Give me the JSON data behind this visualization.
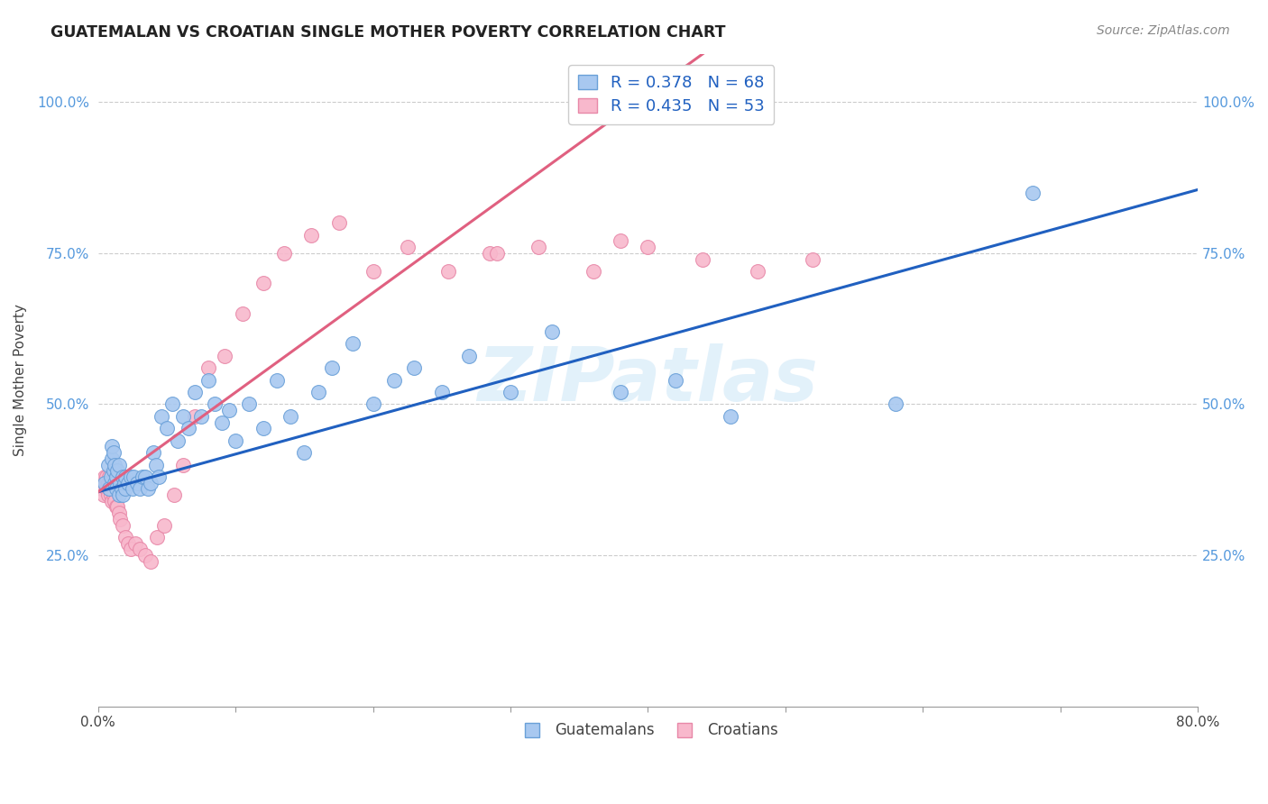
{
  "title": "GUATEMALAN VS CROATIAN SINGLE MOTHER POVERTY CORRELATION CHART",
  "source": "Source: ZipAtlas.com",
  "ylabel": "Single Mother Poverty",
  "xmin": 0.0,
  "xmax": 0.8,
  "ymin": 0.0,
  "ymax": 1.08,
  "guatemalan_color": "#a8c8f0",
  "guatemalan_edge": "#6aa0d8",
  "croatian_color": "#f8b8cc",
  "croatian_edge": "#e888a8",
  "trendline_blue": "#2060c0",
  "trendline_pink": "#e06080",
  "legend_blue_label": "R = 0.378   N = 68",
  "legend_pink_label": "R = 0.435   N = 53",
  "legend_guatemalans": "Guatemalans",
  "legend_croatians": "Croatians",
  "watermark": "ZIPatlas",
  "blue_trend_x0": 0.0,
  "blue_trend_y0": 0.355,
  "blue_trend_x1": 0.8,
  "blue_trend_y1": 0.855,
  "pink_trend_x0": 0.0,
  "pink_trend_y0": 0.355,
  "pink_trend_x1": 0.44,
  "pink_trend_y1": 1.08,
  "guatemalan_points_x": [
    0.005,
    0.007,
    0.008,
    0.009,
    0.01,
    0.01,
    0.011,
    0.011,
    0.012,
    0.012,
    0.013,
    0.013,
    0.014,
    0.015,
    0.015,
    0.016,
    0.017,
    0.018,
    0.018,
    0.019,
    0.02,
    0.02,
    0.022,
    0.024,
    0.025,
    0.026,
    0.028,
    0.03,
    0.032,
    0.034,
    0.036,
    0.038,
    0.04,
    0.042,
    0.044,
    0.046,
    0.05,
    0.054,
    0.058,
    0.062,
    0.066,
    0.07,
    0.075,
    0.08,
    0.085,
    0.09,
    0.095,
    0.1,
    0.11,
    0.12,
    0.13,
    0.14,
    0.15,
    0.16,
    0.17,
    0.185,
    0.2,
    0.215,
    0.23,
    0.25,
    0.27,
    0.3,
    0.33,
    0.38,
    0.42,
    0.46,
    0.58,
    0.68
  ],
  "guatemalan_points_y": [
    0.37,
    0.4,
    0.36,
    0.38,
    0.41,
    0.43,
    0.39,
    0.42,
    0.37,
    0.4,
    0.36,
    0.38,
    0.39,
    0.35,
    0.4,
    0.37,
    0.36,
    0.35,
    0.38,
    0.37,
    0.36,
    0.38,
    0.37,
    0.38,
    0.36,
    0.38,
    0.37,
    0.36,
    0.38,
    0.38,
    0.36,
    0.37,
    0.42,
    0.4,
    0.38,
    0.48,
    0.46,
    0.5,
    0.44,
    0.48,
    0.46,
    0.52,
    0.48,
    0.54,
    0.5,
    0.47,
    0.49,
    0.44,
    0.5,
    0.46,
    0.54,
    0.48,
    0.42,
    0.52,
    0.56,
    0.6,
    0.5,
    0.54,
    0.56,
    0.52,
    0.58,
    0.52,
    0.62,
    0.52,
    0.54,
    0.48,
    0.5,
    0.85
  ],
  "croatian_points_x": [
    0.002,
    0.003,
    0.004,
    0.005,
    0.005,
    0.006,
    0.006,
    0.007,
    0.007,
    0.008,
    0.008,
    0.009,
    0.009,
    0.01,
    0.01,
    0.011,
    0.012,
    0.013,
    0.014,
    0.015,
    0.016,
    0.018,
    0.02,
    0.022,
    0.024,
    0.027,
    0.03,
    0.034,
    0.038,
    0.043,
    0.048,
    0.055,
    0.062,
    0.07,
    0.08,
    0.092,
    0.105,
    0.12,
    0.135,
    0.155,
    0.175,
    0.2,
    0.225,
    0.255,
    0.285,
    0.32,
    0.36,
    0.4,
    0.44,
    0.48,
    0.52,
    0.38,
    0.29
  ],
  "croatian_points_y": [
    0.37,
    0.36,
    0.35,
    0.37,
    0.38,
    0.36,
    0.38,
    0.35,
    0.37,
    0.36,
    0.38,
    0.35,
    0.37,
    0.34,
    0.36,
    0.35,
    0.34,
    0.33,
    0.33,
    0.32,
    0.31,
    0.3,
    0.28,
    0.27,
    0.26,
    0.27,
    0.26,
    0.25,
    0.24,
    0.28,
    0.3,
    0.35,
    0.4,
    0.48,
    0.56,
    0.58,
    0.65,
    0.7,
    0.75,
    0.78,
    0.8,
    0.72,
    0.76,
    0.72,
    0.75,
    0.76,
    0.72,
    0.76,
    0.74,
    0.72,
    0.74,
    0.77,
    0.75
  ]
}
